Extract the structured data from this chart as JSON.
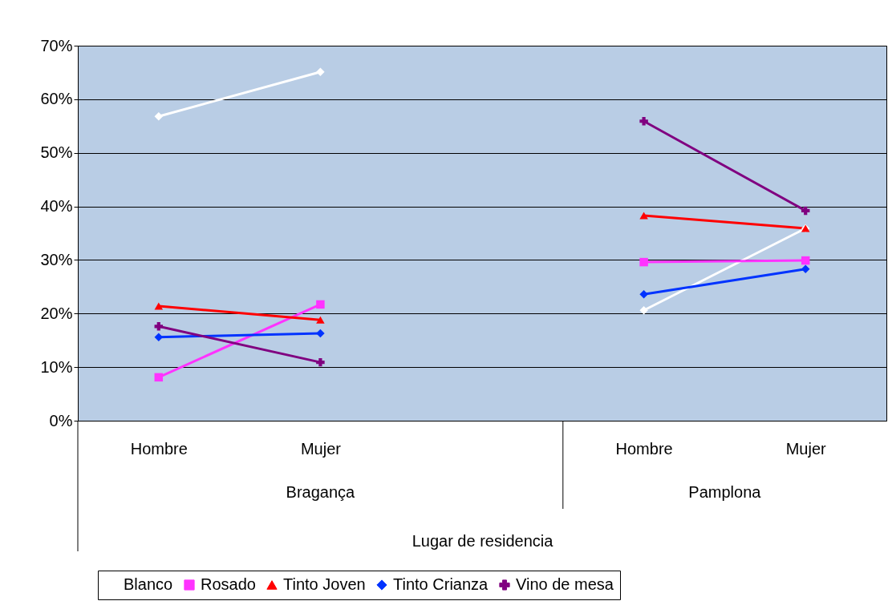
{
  "chart_data": {
    "type": "line",
    "xlabel": "Lugar de residencia",
    "categories": [
      "Hombre",
      "Mujer",
      null,
      "Hombre",
      "Mujer"
    ],
    "annotations": [
      "Bragança",
      "Pamplona"
    ],
    "series": [
      {
        "name": "Blanco",
        "color": "#ffffff",
        "marker": "diamond",
        "values": [
          56.8,
          65.1,
          null,
          20.6,
          35.9
        ]
      },
      {
        "name": "Rosado",
        "color": "#ff33ff",
        "marker": "square",
        "values": [
          8.1,
          21.7,
          null,
          29.6,
          29.9
        ]
      },
      {
        "name": "Tinto Joven",
        "color": "#ff0000",
        "marker": "triangle",
        "values": [
          21.4,
          18.8,
          null,
          38.3,
          35.9
        ]
      },
      {
        "name": "Tinto Crianza",
        "color": "#0033ff",
        "marker": "diamond",
        "values": [
          15.6,
          16.3,
          null,
          23.6,
          28.3
        ]
      },
      {
        "name": "Vino de mesa",
        "color": "#800080",
        "marker": "cross",
        "values": [
          17.6,
          10.9,
          null,
          55.9,
          39.2
        ]
      }
    ],
    "ylim": [
      0,
      70
    ],
    "yticks": [
      {
        "value": 0,
        "label": "0%"
      },
      {
        "value": 10,
        "label": "10%"
      },
      {
        "value": 20,
        "label": "20%"
      },
      {
        "value": 30,
        "label": "30%"
      },
      {
        "value": 40,
        "label": "40%"
      },
      {
        "value": 50,
        "label": "50%"
      },
      {
        "value": 60,
        "label": "60%"
      },
      {
        "value": 70,
        "label": "70%"
      }
    ],
    "grid": "y",
    "legend": "bottom",
    "line_style": "solid"
  }
}
